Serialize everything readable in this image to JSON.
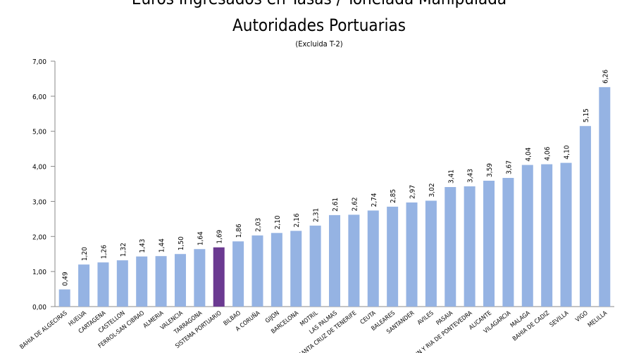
{
  "chart_data": {
    "type": "bar",
    "title": "Euros Ingresados en Tasas / Tonelada Manipulada",
    "subtitle": "Autoridades Portuarias",
    "note": "(Excluida T-2)",
    "categories": [
      "BAHIA DE ALGECIRAS",
      "HUELVA",
      "CARTAGENA",
      "CASTELLON",
      "FERROL-SAN CIBRAO",
      "ALMERIA",
      "VALENCIA",
      "TARRAGONA",
      "SISTEMA PORTUARIO",
      "BILBAO",
      "A CORUÑA",
      "GIJON",
      "BARCELONA",
      "MOTRIL",
      "LAS PALMAS",
      "SANTA CRUZ DE TENERIFE",
      "CEUTA",
      "BALEARES",
      "SANTANDER",
      "AVILES",
      "PASAIA",
      "MARIN Y RIA DE PONTEVEDRA",
      "ALICANTE",
      "VILAGARCIA",
      "MALAGA",
      "BAHIA DE CADIZ",
      "SEVILLA",
      "VIGO",
      "MELILLA"
    ],
    "values": [
      0.49,
      1.2,
      1.26,
      1.32,
      1.43,
      1.44,
      1.5,
      1.64,
      1.69,
      1.86,
      2.03,
      2.1,
      2.16,
      2.31,
      2.61,
      2.62,
      2.74,
      2.85,
      2.97,
      3.02,
      3.41,
      3.43,
      3.59,
      3.67,
      4.04,
      4.06,
      4.1,
      5.15,
      6.26
    ],
    "value_labels": [
      "0,49",
      "1,20",
      "1,26",
      "1,32",
      "1,43",
      "1,44",
      "1,50",
      "1,64",
      "1,69",
      "1,86",
      "2,03",
      "2,10",
      "2,16",
      "2,31",
      "2,61",
      "2,62",
      "2,74",
      "2,85",
      "2,97",
      "3,02",
      "3,41",
      "3,43",
      "3,59",
      "3,67",
      "4,04",
      "4,06",
      "4,10",
      "5,15",
      "6,26"
    ],
    "colors": [
      "#95b3e3",
      "#95b3e3",
      "#95b3e3",
      "#95b3e3",
      "#95b3e3",
      "#95b3e3",
      "#95b3e3",
      "#95b3e3",
      "#6b3a91",
      "#95b3e3",
      "#95b3e3",
      "#95b3e3",
      "#95b3e3",
      "#95b3e3",
      "#95b3e3",
      "#95b3e3",
      "#95b3e3",
      "#95b3e3",
      "#95b3e3",
      "#95b3e3",
      "#95b3e3",
      "#95b3e3",
      "#95b3e3",
      "#95b3e3",
      "#95b3e3",
      "#95b3e3",
      "#95b3e3",
      "#95b3e3",
      "#95b3e3"
    ],
    "ylim": [
      0,
      7
    ],
    "yticks": [
      {
        "value": 0,
        "label": "0,00"
      },
      {
        "value": 1,
        "label": "1,00"
      },
      {
        "value": 2,
        "label": "2,00"
      },
      {
        "value": 3,
        "label": "3,00"
      },
      {
        "value": 4,
        "label": "4,00"
      },
      {
        "value": 5,
        "label": "5,00"
      },
      {
        "value": 6,
        "label": "6,00"
      },
      {
        "value": 7,
        "label": "7,00"
      }
    ]
  }
}
